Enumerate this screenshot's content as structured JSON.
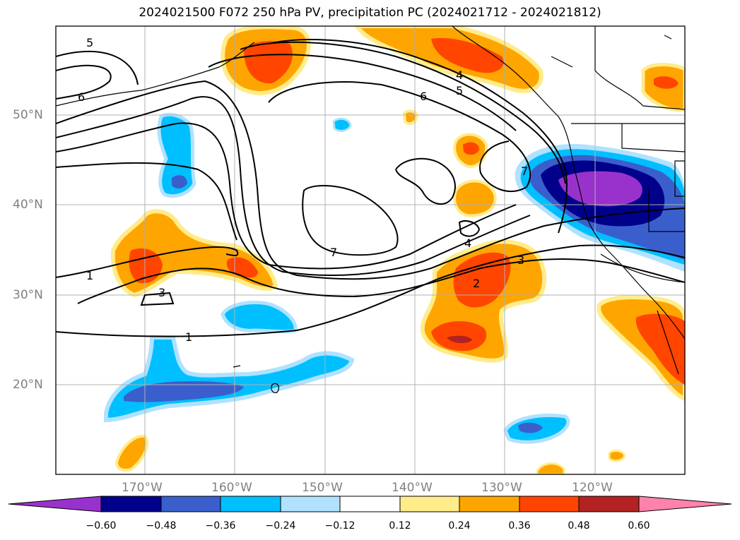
{
  "title": "2024021500 F072 250 hPa PV, precipitation PC (2024021712 - 2024021812)",
  "lat_labels": [
    "50°N",
    "40°N",
    "30°N",
    "20°N"
  ],
  "lon_labels": [
    "170°W",
    "160°W",
    "150°W",
    "140°W",
    "130°W",
    "120°W"
  ],
  "colorbar": {
    "ticks": [
      "−0.60",
      "−0.48",
      "−0.36",
      "−0.24",
      "−0.12",
      "0.12",
      "0.24",
      "0.36",
      "0.48",
      "0.60"
    ],
    "colors": [
      "#9932cc",
      "#00008b",
      "#3a5fcd",
      "#00bfff",
      "#b0e2ff",
      "#ffffff",
      "#ffec8b",
      "#ffa500",
      "#ff4500",
      "#b22222",
      "#ff82ab"
    ]
  },
  "contour_labels": [
    "5",
    "6",
    "4",
    "5",
    "6",
    "7",
    "1",
    "3",
    "7",
    "4",
    "3",
    "2",
    "1"
  ]
}
